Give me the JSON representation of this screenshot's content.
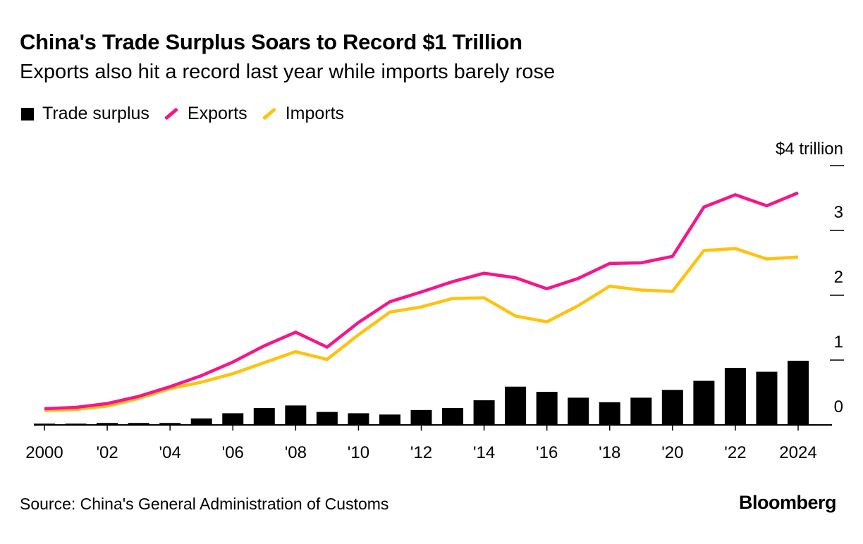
{
  "colors": {
    "surplus": "#000000",
    "exports": "#f5168c",
    "imports": "#ffc20e"
  },
  "chart_data": {
    "type": "bar+line",
    "title": "China's Trade Surplus Soars to Record $1 Trillion",
    "subtitle": "Exports also hit a record last year while imports barely rose",
    "x": [
      2000,
      2001,
      2002,
      2003,
      2004,
      2005,
      2006,
      2007,
      2008,
      2009,
      2010,
      2011,
      2012,
      2013,
      2014,
      2015,
      2016,
      2017,
      2018,
      2019,
      2020,
      2021,
      2022,
      2023,
      2024
    ],
    "x_tick_labels": [
      {
        "x": 2000,
        "label": "2000"
      },
      {
        "x": 2002,
        "label": "'02"
      },
      {
        "x": 2004,
        "label": "'04"
      },
      {
        "x": 2006,
        "label": "'06"
      },
      {
        "x": 2008,
        "label": "'08"
      },
      {
        "x": 2010,
        "label": "'10"
      },
      {
        "x": 2012,
        "label": "'12"
      },
      {
        "x": 2014,
        "label": "'14"
      },
      {
        "x": 2016,
        "label": "'16"
      },
      {
        "x": 2018,
        "label": "'18"
      },
      {
        "x": 2020,
        "label": "'20"
      },
      {
        "x": 2022,
        "label": "'22"
      },
      {
        "x": 2024,
        "label": "2024"
      }
    ],
    "y_ticks": [
      {
        "v": 0,
        "label": "0"
      },
      {
        "v": 1,
        "label": "1"
      },
      {
        "v": 2,
        "label": "2"
      },
      {
        "v": 3,
        "label": "3"
      },
      {
        "v": 4,
        "label": "$4 trillion"
      }
    ],
    "ylim": [
      0,
      4
    ],
    "y_axis_position": "right",
    "legend_position": "top-left",
    "grid": false,
    "series": [
      {
        "name": "Trade surplus",
        "type": "bar",
        "values": [
          0.02,
          0.02,
          0.03,
          0.03,
          0.03,
          0.1,
          0.18,
          0.26,
          0.3,
          0.2,
          0.18,
          0.16,
          0.23,
          0.26,
          0.38,
          0.59,
          0.51,
          0.42,
          0.35,
          0.42,
          0.54,
          0.68,
          0.88,
          0.82,
          0.99
        ]
      },
      {
        "name": "Exports",
        "type": "line",
        "values": [
          0.25,
          0.27,
          0.33,
          0.44,
          0.59,
          0.76,
          0.97,
          1.22,
          1.43,
          1.2,
          1.58,
          1.9,
          2.05,
          2.21,
          2.34,
          2.27,
          2.1,
          2.26,
          2.49,
          2.5,
          2.6,
          3.36,
          3.55,
          3.38,
          3.58
        ]
      },
      {
        "name": "Imports",
        "type": "line",
        "values": [
          0.22,
          0.24,
          0.29,
          0.41,
          0.56,
          0.66,
          0.79,
          0.96,
          1.13,
          1.01,
          1.39,
          1.74,
          1.82,
          1.95,
          1.96,
          1.68,
          1.59,
          1.84,
          2.14,
          2.08,
          2.06,
          2.69,
          2.72,
          2.56,
          2.59
        ]
      }
    ]
  },
  "footer": {
    "source": "Source: China's General Administration of Customs",
    "logo": "Bloomberg"
  }
}
